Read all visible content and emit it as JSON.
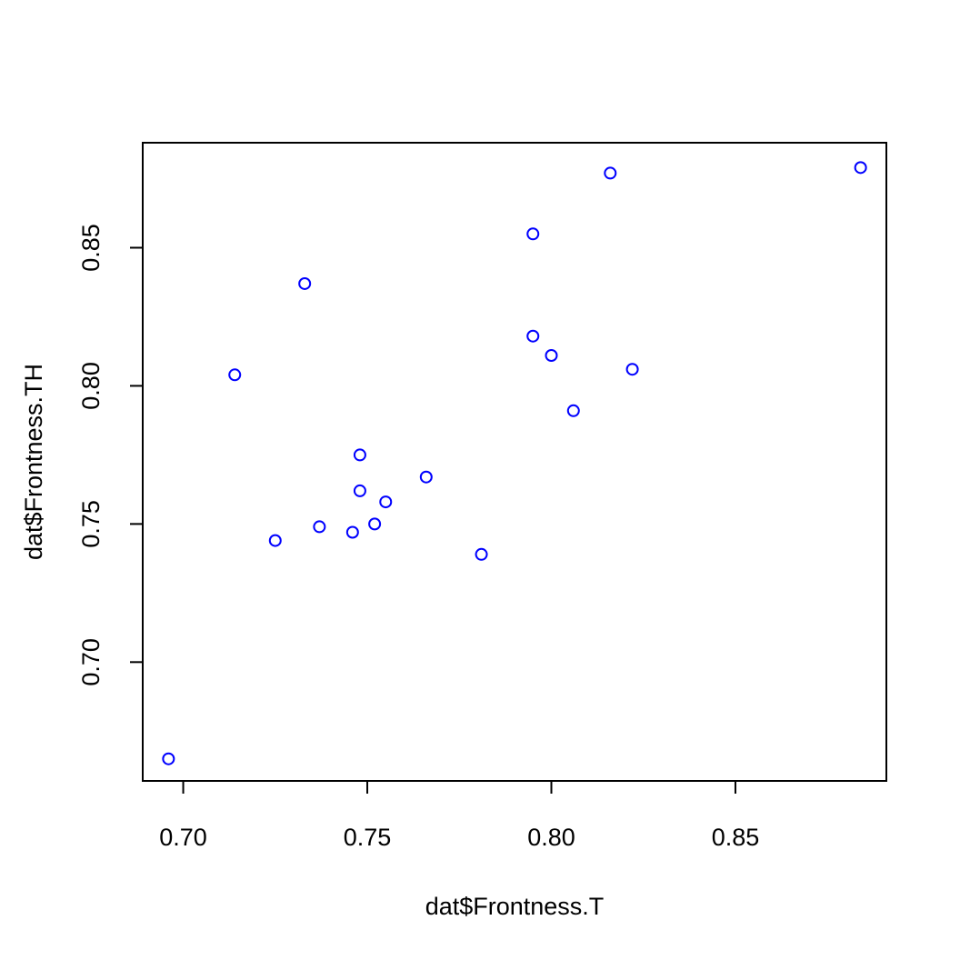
{
  "chart_data": {
    "type": "scatter",
    "title": "",
    "xlabel": "dat$Frontness.T",
    "ylabel": "dat$Frontness.TH",
    "xlim": [
      0.689,
      0.891
    ],
    "ylim": [
      0.657,
      0.888
    ],
    "xticks": [
      0.7,
      0.75,
      0.8,
      0.85
    ],
    "xtick_labels": [
      "0.70",
      "0.75",
      "0.80",
      "0.85"
    ],
    "yticks": [
      0.7,
      0.75,
      0.8,
      0.85
    ],
    "ytick_labels": [
      "0.70",
      "0.75",
      "0.80",
      "0.85"
    ],
    "grid": false,
    "marker": "open-circle",
    "point_color": "#0000ff",
    "points": [
      {
        "x": 0.696,
        "y": 0.665
      },
      {
        "x": 0.714,
        "y": 0.804
      },
      {
        "x": 0.725,
        "y": 0.744
      },
      {
        "x": 0.733,
        "y": 0.837
      },
      {
        "x": 0.737,
        "y": 0.749
      },
      {
        "x": 0.746,
        "y": 0.747
      },
      {
        "x": 0.748,
        "y": 0.775
      },
      {
        "x": 0.748,
        "y": 0.762
      },
      {
        "x": 0.752,
        "y": 0.75
      },
      {
        "x": 0.755,
        "y": 0.758
      },
      {
        "x": 0.766,
        "y": 0.767
      },
      {
        "x": 0.781,
        "y": 0.739
      },
      {
        "x": 0.795,
        "y": 0.818
      },
      {
        "x": 0.795,
        "y": 0.855
      },
      {
        "x": 0.8,
        "y": 0.811
      },
      {
        "x": 0.806,
        "y": 0.791
      },
      {
        "x": 0.816,
        "y": 0.877
      },
      {
        "x": 0.822,
        "y": 0.806
      },
      {
        "x": 0.884,
        "y": 0.879
      }
    ]
  }
}
